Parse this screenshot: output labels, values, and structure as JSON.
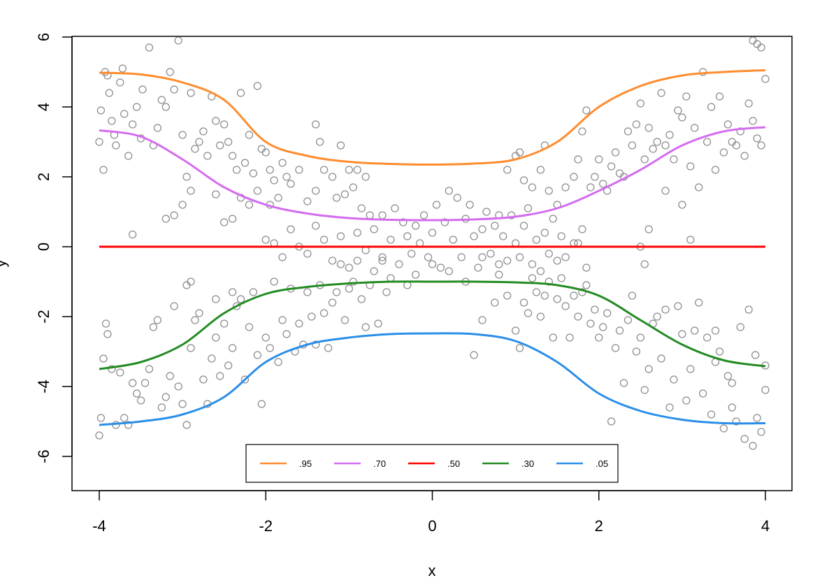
{
  "chart_data": {
    "type": "scatter",
    "title": "",
    "xlabel": "x",
    "ylabel": "y",
    "xlim": [
      -4,
      4
    ],
    "ylim": [
      -6,
      6
    ],
    "x_ticks": [
      "-4",
      "-2",
      "0",
      "2",
      "4"
    ],
    "y_ticks": [
      "-6",
      "-4",
      "-2",
      "0",
      "2",
      "4",
      "6"
    ],
    "grid": false,
    "legend_position": "bottom-center",
    "point_color": "#8c8c8c",
    "points": [
      [
        -4.0,
        3.0
      ],
      [
        -3.98,
        3.9
      ],
      [
        -3.95,
        2.2
      ],
      [
        -3.93,
        5.0
      ],
      [
        -3.9,
        4.9
      ],
      [
        -3.88,
        4.4
      ],
      [
        -3.85,
        3.6
      ],
      [
        -3.82,
        3.2
      ],
      [
        -3.8,
        2.9
      ],
      [
        -3.75,
        4.7
      ],
      [
        -3.72,
        5.1
      ],
      [
        -3.7,
        3.8
      ],
      [
        -3.65,
        2.6
      ],
      [
        -3.6,
        3.5
      ],
      [
        -3.55,
        4.0
      ],
      [
        -3.5,
        3.1
      ],
      [
        -3.48,
        4.5
      ],
      [
        -3.4,
        5.7
      ],
      [
        -3.35,
        2.9
      ],
      [
        -3.3,
        3.4
      ],
      [
        -3.25,
        4.2
      ],
      [
        -3.2,
        4.0
      ],
      [
        -3.15,
        5.0
      ],
      [
        -3.1,
        4.5
      ],
      [
        -3.05,
        5.9
      ],
      [
        -3.0,
        3.2
      ],
      [
        -2.95,
        2.0
      ],
      [
        -2.9,
        4.4
      ],
      [
        -2.85,
        2.8
      ],
      [
        -2.8,
        3.0
      ],
      [
        -2.75,
        3.3
      ],
      [
        -2.7,
        2.6
      ],
      [
        -2.65,
        4.3
      ],
      [
        -2.6,
        3.6
      ],
      [
        -2.55,
        2.9
      ],
      [
        -2.5,
        3.5
      ],
      [
        -2.45,
        3.0
      ],
      [
        -2.4,
        2.6
      ],
      [
        -2.35,
        2.2
      ],
      [
        -2.3,
        4.4
      ],
      [
        -2.25,
        2.4
      ],
      [
        -2.2,
        3.2
      ],
      [
        -2.15,
        2.1
      ],
      [
        -2.1,
        4.6
      ],
      [
        -2.05,
        2.8
      ],
      [
        -2.0,
        2.7
      ],
      [
        -1.95,
        2.2
      ],
      [
        -1.9,
        1.9
      ],
      [
        -3.1,
        0.9
      ],
      [
        -3.2,
        0.8
      ],
      [
        -3.6,
        0.35
      ],
      [
        -3.0,
        1.2
      ],
      [
        -2.9,
        1.6
      ],
      [
        -2.6,
        1.5
      ],
      [
        -2.5,
        0.7
      ],
      [
        -2.4,
        0.8
      ],
      [
        -2.3,
        1.4
      ],
      [
        -2.2,
        1.2
      ],
      [
        -2.1,
        1.6
      ],
      [
        -1.95,
        1.2
      ],
      [
        -1.85,
        1.4
      ],
      [
        -1.8,
        2.4
      ],
      [
        -1.75,
        2.0
      ],
      [
        -1.7,
        1.8
      ],
      [
        -1.6,
        2.2
      ],
      [
        -1.5,
        1.3
      ],
      [
        -1.4,
        1.6
      ],
      [
        -1.3,
        2.2
      ],
      [
        -1.2,
        2.0
      ],
      [
        -1.1,
        2.9
      ],
      [
        -1.0,
        2.2
      ],
      [
        -0.9,
        2.2
      ],
      [
        -0.8,
        2.0
      ],
      [
        -1.4,
        3.5
      ],
      [
        -1.35,
        3.0
      ],
      [
        -1.15,
        1.4
      ],
      [
        -1.05,
        1.5
      ],
      [
        -0.95,
        1.7
      ],
      [
        -0.85,
        1.1
      ],
      [
        -0.75,
        0.9
      ],
      [
        -2.0,
        0.2
      ],
      [
        -1.9,
        0.1
      ],
      [
        -1.8,
        -0.3
      ],
      [
        -1.7,
        0.5
      ],
      [
        -1.6,
        0.0
      ],
      [
        -1.5,
        -0.2
      ],
      [
        -1.4,
        0.6
      ],
      [
        -1.3,
        0.2
      ],
      [
        -1.2,
        -0.4
      ],
      [
        -1.1,
        0.3
      ],
      [
        -1.0,
        -0.6
      ],
      [
        -0.9,
        0.4
      ],
      [
        -0.8,
        -0.1
      ],
      [
        -0.7,
        0.5
      ],
      [
        -0.6,
        0.9
      ],
      [
        -0.5,
        0.2
      ],
      [
        -0.45,
        1.1
      ],
      [
        -0.4,
        -0.5
      ],
      [
        -0.35,
        0.7
      ],
      [
        -0.3,
        0.3
      ],
      [
        -0.25,
        -0.2
      ],
      [
        -0.2,
        0.6
      ],
      [
        -0.15,
        0.1
      ],
      [
        -0.1,
        0.9
      ],
      [
        -0.05,
        -0.3
      ],
      [
        0.0,
        0.4
      ],
      [
        0.05,
        1.2
      ],
      [
        0.1,
        -0.6
      ],
      [
        0.15,
        0.7
      ],
      [
        0.2,
        1.6
      ],
      [
        0.25,
        0.2
      ],
      [
        0.3,
        1.4
      ],
      [
        0.35,
        -0.3
      ],
      [
        0.4,
        0.8
      ],
      [
        0.45,
        1.2
      ],
      [
        0.5,
        0.3
      ],
      [
        0.55,
        -0.6
      ],
      [
        0.6,
        0.5
      ],
      [
        0.65,
        1.0
      ],
      [
        0.7,
        -0.2
      ],
      [
        0.75,
        0.6
      ],
      [
        0.8,
        0.9
      ],
      [
        0.85,
        0.3
      ],
      [
        0.9,
        -0.4
      ],
      [
        0.95,
        0.9
      ],
      [
        1.0,
        0.1
      ],
      [
        1.05,
        -0.3
      ],
      [
        1.1,
        0.6
      ],
      [
        1.15,
        1.1
      ],
      [
        1.2,
        -0.5
      ],
      [
        1.25,
        0.2
      ],
      [
        1.3,
        -0.7
      ],
      [
        1.35,
        0.4
      ],
      [
        1.4,
        -0.2
      ],
      [
        1.45,
        0.8
      ],
      [
        1.5,
        -0.4
      ],
      [
        1.55,
        0.3
      ],
      [
        1.6,
        -0.3
      ],
      [
        1.7,
        0.1
      ],
      [
        1.75,
        0.1
      ],
      [
        1.8,
        0.5
      ],
      [
        1.85,
        -0.6
      ],
      [
        -0.6,
        -0.4
      ],
      [
        -0.5,
        -0.9
      ],
      [
        -0.3,
        -1.1
      ],
      [
        -0.2,
        -0.8
      ],
      [
        0.0,
        -0.5
      ],
      [
        0.2,
        -0.7
      ],
      [
        0.4,
        -1.0
      ],
      [
        0.6,
        -0.3
      ],
      [
        0.8,
        -0.5
      ],
      [
        0.9,
        2.2
      ],
      [
        1.0,
        2.6
      ],
      [
        1.05,
        2.7
      ],
      [
        1.1,
        1.9
      ],
      [
        1.2,
        1.7
      ],
      [
        1.3,
        2.2
      ],
      [
        1.35,
        2.9
      ],
      [
        1.4,
        1.6
      ],
      [
        1.5,
        1.2
      ],
      [
        1.6,
        1.7
      ],
      [
        1.7,
        2.0
      ],
      [
        1.75,
        2.5
      ],
      [
        1.8,
        3.3
      ],
      [
        1.85,
        3.9
      ],
      [
        1.9,
        1.7
      ],
      [
        1.95,
        2.0
      ],
      [
        2.0,
        2.5
      ],
      [
        2.05,
        1.8
      ],
      [
        2.1,
        1.6
      ],
      [
        2.15,
        2.3
      ],
      [
        2.2,
        2.7
      ],
      [
        2.25,
        2.1
      ],
      [
        2.3,
        2.0
      ],
      [
        2.35,
        3.3
      ],
      [
        2.4,
        2.9
      ],
      [
        2.45,
        3.5
      ],
      [
        2.5,
        4.1
      ],
      [
        2.55,
        2.5
      ],
      [
        2.6,
        3.4
      ],
      [
        2.65,
        2.8
      ],
      [
        2.7,
        3.0
      ],
      [
        2.75,
        4.4
      ],
      [
        2.8,
        2.9
      ],
      [
        2.85,
        3.2
      ],
      [
        2.9,
        2.5
      ],
      [
        2.95,
        3.9
      ],
      [
        3.0,
        3.7
      ],
      [
        3.05,
        4.3
      ],
      [
        3.1,
        2.3
      ],
      [
        3.15,
        3.4
      ],
      [
        3.2,
        1.7
      ],
      [
        3.25,
        5.0
      ],
      [
        3.3,
        3.0
      ],
      [
        3.35,
        4.0
      ],
      [
        3.4,
        2.2
      ],
      [
        3.45,
        4.3
      ],
      [
        3.5,
        2.7
      ],
      [
        3.55,
        3.5
      ],
      [
        3.6,
        3.0
      ],
      [
        3.65,
        2.9
      ],
      [
        3.7,
        3.3
      ],
      [
        3.75,
        2.6
      ],
      [
        3.8,
        4.1
      ],
      [
        3.85,
        3.6
      ],
      [
        3.9,
        3.1
      ],
      [
        3.95,
        2.9
      ],
      [
        4.0,
        4.8
      ],
      [
        3.85,
        5.9
      ],
      [
        3.9,
        5.8
      ],
      [
        3.95,
        5.7
      ],
      [
        3.0,
        1.2
      ],
      [
        2.8,
        1.6
      ],
      [
        3.1,
        0.2
      ],
      [
        2.6,
        0.5
      ],
      [
        2.5,
        0.0
      ],
      [
        2.55,
        -0.5
      ],
      [
        -4.0,
        -5.4
      ],
      [
        -3.98,
        -4.9
      ],
      [
        -3.95,
        -3.2
      ],
      [
        -3.92,
        -2.2
      ],
      [
        -3.9,
        -2.5
      ],
      [
        -3.85,
        -3.5
      ],
      [
        -3.8,
        -5.1
      ],
      [
        -3.75,
        -3.6
      ],
      [
        -3.7,
        -4.9
      ],
      [
        -3.65,
        -5.1
      ],
      [
        -3.6,
        -3.9
      ],
      [
        -3.55,
        -4.2
      ],
      [
        -3.5,
        -4.4
      ],
      [
        -3.45,
        -3.9
      ],
      [
        -3.4,
        -3.5
      ],
      [
        -3.35,
        -2.3
      ],
      [
        -3.3,
        -2.1
      ],
      [
        -3.25,
        -4.6
      ],
      [
        -3.2,
        -4.3
      ],
      [
        -3.15,
        -3.7
      ],
      [
        -3.1,
        -1.7
      ],
      [
        -3.05,
        -4.0
      ],
      [
        -3.0,
        -4.5
      ],
      [
        -2.95,
        -5.1
      ],
      [
        -2.9,
        -2.9
      ],
      [
        -2.85,
        -2.1
      ],
      [
        -2.8,
        -1.9
      ],
      [
        -2.75,
        -3.8
      ],
      [
        -2.7,
        -4.5
      ],
      [
        -2.65,
        -3.2
      ],
      [
        -2.6,
        -2.6
      ],
      [
        -2.55,
        -3.7
      ],
      [
        -2.5,
        -2.2
      ],
      [
        -2.45,
        -3.4
      ],
      [
        -2.4,
        -2.9
      ],
      [
        -2.35,
        -1.7
      ],
      [
        -2.3,
        -1.5
      ],
      [
        -2.25,
        -3.8
      ],
      [
        -2.2,
        -2.3
      ],
      [
        -2.15,
        -1.3
      ],
      [
        -2.1,
        -3.1
      ],
      [
        -2.05,
        -4.5
      ],
      [
        -2.0,
        -2.6
      ],
      [
        -1.95,
        -2.9
      ],
      [
        -1.9,
        -1.0
      ],
      [
        -1.85,
        -3.3
      ],
      [
        -1.8,
        -2.1
      ],
      [
        -1.75,
        -2.5
      ],
      [
        -1.7,
        -1.2
      ],
      [
        -1.65,
        -3.0
      ],
      [
        -1.6,
        -2.2
      ],
      [
        -1.55,
        -2.8
      ],
      [
        -1.5,
        -1.3
      ],
      [
        -1.45,
        -2.0
      ],
      [
        -1.4,
        -2.8
      ],
      [
        -1.35,
        -1.1
      ],
      [
        -1.3,
        -1.9
      ],
      [
        -1.25,
        -2.9
      ],
      [
        -1.2,
        -1.6
      ],
      [
        -1.15,
        -1.3
      ],
      [
        -1.1,
        -0.5
      ],
      [
        -1.05,
        -2.1
      ],
      [
        -1.0,
        -1.2
      ],
      [
        -0.95,
        -1.0
      ],
      [
        -0.9,
        -0.4
      ],
      [
        -0.85,
        -1.5
      ],
      [
        -0.8,
        -2.3
      ],
      [
        -0.75,
        -1.1
      ],
      [
        -0.7,
        -0.7
      ],
      [
        -0.65,
        -2.2
      ],
      [
        -0.6,
        -0.3
      ],
      [
        -0.55,
        -1.3
      ],
      [
        -2.9,
        -1.0
      ],
      [
        -2.95,
        -1.1
      ],
      [
        -2.6,
        -1.5
      ],
      [
        -2.4,
        -1.3
      ],
      [
        0.5,
        -3.1
      ],
      [
        0.6,
        -2.1
      ],
      [
        0.75,
        -1.6
      ],
      [
        0.8,
        -0.8
      ],
      [
        0.9,
        -1.4
      ],
      [
        1.0,
        -2.4
      ],
      [
        1.05,
        -2.9
      ],
      [
        1.1,
        -1.6
      ],
      [
        1.15,
        -1.9
      ],
      [
        1.2,
        -0.9
      ],
      [
        1.25,
        -1.3
      ],
      [
        1.3,
        -2.0
      ],
      [
        1.35,
        -1.4
      ],
      [
        1.4,
        -1.0
      ],
      [
        1.45,
        -2.6
      ],
      [
        1.5,
        -1.5
      ],
      [
        1.55,
        -0.9
      ],
      [
        1.6,
        -1.7
      ],
      [
        1.65,
        -2.6
      ],
      [
        1.7,
        -1.4
      ],
      [
        1.75,
        -2.0
      ],
      [
        1.8,
        -1.3
      ],
      [
        1.85,
        -1.1
      ],
      [
        1.9,
        -2.2
      ],
      [
        1.95,
        -1.8
      ],
      [
        2.0,
        -2.6
      ],
      [
        2.05,
        -2.3
      ],
      [
        2.1,
        -1.9
      ],
      [
        2.15,
        -5.0
      ],
      [
        2.2,
        -2.9
      ],
      [
        2.25,
        -2.4
      ],
      [
        2.3,
        -3.9
      ],
      [
        2.35,
        -2.1
      ],
      [
        2.4,
        -1.4
      ],
      [
        2.45,
        -3.0
      ],
      [
        2.5,
        -2.6
      ],
      [
        2.55,
        -4.1
      ],
      [
        2.6,
        -3.5
      ],
      [
        2.65,
        -2.2
      ],
      [
        2.7,
        -2.0
      ],
      [
        2.75,
        -3.2
      ],
      [
        2.8,
        -1.8
      ],
      [
        2.85,
        -4.6
      ],
      [
        2.9,
        -3.8
      ],
      [
        2.95,
        -1.7
      ],
      [
        3.0,
        -2.5
      ],
      [
        3.05,
        -4.4
      ],
      [
        3.1,
        -3.5
      ],
      [
        3.15,
        -2.4
      ],
      [
        3.2,
        -1.6
      ],
      [
        3.25,
        -4.2
      ],
      [
        3.3,
        -2.6
      ],
      [
        3.35,
        -4.8
      ],
      [
        3.4,
        -2.4
      ],
      [
        3.45,
        -3.0
      ],
      [
        3.5,
        -5.2
      ],
      [
        3.55,
        -3.7
      ],
      [
        3.6,
        -4.6
      ],
      [
        3.65,
        -5.0
      ],
      [
        3.7,
        -2.3
      ],
      [
        3.75,
        -5.5
      ],
      [
        3.8,
        -1.8
      ],
      [
        3.85,
        -5.7
      ],
      [
        3.88,
        -3.1
      ],
      [
        3.9,
        -4.9
      ],
      [
        3.95,
        -5.3
      ],
      [
        4.0,
        -3.4
      ],
      [
        4.0,
        -4.1
      ],
      [
        3.6,
        -3.9
      ],
      [
        3.4,
        -3.3
      ]
    ],
    "series": [
      {
        "name": ".95",
        "color": "#ff8c2e",
        "x": [
          -4,
          -3.5,
          -3,
          -2.5,
          -2,
          -1.5,
          -1,
          -0.5,
          0,
          0.5,
          1,
          1.5,
          2,
          2.5,
          3,
          3.5,
          4
        ],
        "y": [
          4.98,
          4.93,
          4.7,
          4.2,
          3.0,
          2.6,
          2.43,
          2.37,
          2.35,
          2.38,
          2.5,
          3.0,
          4.0,
          4.6,
          4.9,
          5.0,
          5.05
        ]
      },
      {
        "name": ".70",
        "color": "#d46cf0",
        "x": [
          -4,
          -3.5,
          -3,
          -2.5,
          -2,
          -1.5,
          -1,
          -0.5,
          0,
          0.5,
          1,
          1.5,
          2,
          2.5,
          3,
          3.5,
          4
        ],
        "y": [
          3.33,
          3.15,
          2.5,
          1.7,
          1.2,
          0.95,
          0.82,
          0.77,
          0.76,
          0.78,
          0.86,
          1.1,
          1.6,
          2.2,
          2.9,
          3.3,
          3.42
        ]
      },
      {
        "name": ".50",
        "color": "#ff0000",
        "x": [
          -4,
          4
        ],
        "y": [
          0.0,
          0.0
        ]
      },
      {
        "name": ".30",
        "color": "#228b22",
        "x": [
          -4,
          -3.5,
          -3,
          -2.5,
          -2,
          -1.5,
          -1,
          -0.5,
          0,
          0.5,
          1,
          1.5,
          2,
          2.5,
          3,
          3.5,
          4
        ],
        "y": [
          -3.5,
          -3.3,
          -2.8,
          -1.9,
          -1.35,
          -1.15,
          -1.05,
          -1.0,
          -1.0,
          -1.0,
          -1.02,
          -1.1,
          -1.4,
          -2.1,
          -2.8,
          -3.25,
          -3.42
        ]
      },
      {
        "name": ".05",
        "color": "#2a8ee8",
        "x": [
          -4,
          -3.5,
          -3,
          -2.5,
          -2,
          -1.5,
          -1,
          -0.5,
          0,
          0.5,
          1,
          1.5,
          2,
          2.5,
          3,
          3.5,
          4
        ],
        "y": [
          -5.1,
          -5.0,
          -4.8,
          -4.3,
          -3.3,
          -2.8,
          -2.6,
          -2.5,
          -2.48,
          -2.5,
          -2.7,
          -3.3,
          -4.2,
          -4.7,
          -4.95,
          -5.05,
          -5.05
        ]
      }
    ]
  }
}
